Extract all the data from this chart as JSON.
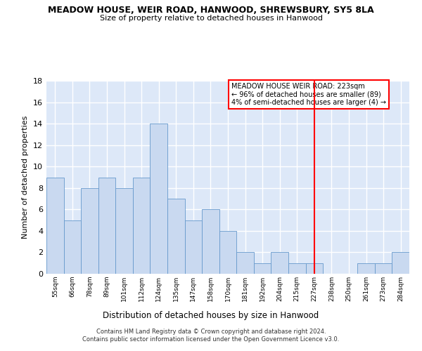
{
  "title": "MEADOW HOUSE, WEIR ROAD, HANWOOD, SHREWSBURY, SY5 8LA",
  "subtitle": "Size of property relative to detached houses in Hanwood",
  "xlabel": "Distribution of detached houses by size in Hanwood",
  "ylabel": "Number of detached properties",
  "bin_labels": [
    "55sqm",
    "66sqm",
    "78sqm",
    "89sqm",
    "101sqm",
    "112sqm",
    "124sqm",
    "135sqm",
    "147sqm",
    "158sqm",
    "170sqm",
    "181sqm",
    "192sqm",
    "204sqm",
    "215sqm",
    "227sqm",
    "238sqm",
    "250sqm",
    "261sqm",
    "273sqm",
    "284sqm"
  ],
  "bar_heights": [
    9,
    5,
    8,
    9,
    8,
    9,
    14,
    7,
    5,
    6,
    4,
    2,
    1,
    2,
    1,
    1,
    0,
    0,
    1,
    1,
    2
  ],
  "bar_color": "#c9d9f0",
  "bar_edge_color": "#6699cc",
  "background_color": "#dde8f8",
  "grid_color": "#ffffff",
  "vline_index": 15,
  "vline_color": "red",
  "annotation_text": "MEADOW HOUSE WEIR ROAD: 223sqm\n← 96% of detached houses are smaller (89)\n4% of semi-detached houses are larger (4) →",
  "annotation_box_color": "white",
  "annotation_box_edge": "red",
  "ylim": [
    0,
    18
  ],
  "yticks": [
    0,
    2,
    4,
    6,
    8,
    10,
    12,
    14,
    16,
    18
  ],
  "footer_line1": "Contains HM Land Registry data © Crown copyright and database right 2024.",
  "footer_line2": "Contains public sector information licensed under the Open Government Licence v3.0."
}
